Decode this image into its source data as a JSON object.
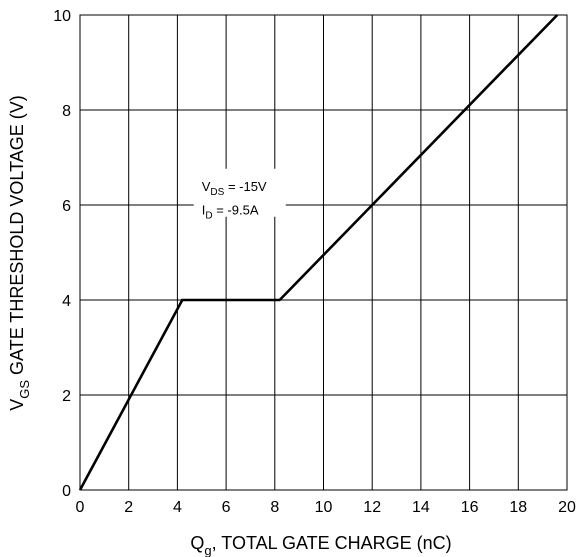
{
  "chart_data": {
    "type": "line",
    "colors": {
      "line": "#000000",
      "grid": "#000000",
      "background": "#ffffff"
    },
    "grid": true,
    "xlim": [
      0,
      20
    ],
    "ylim": [
      0,
      10
    ],
    "x_ticks": [
      0,
      2,
      4,
      6,
      8,
      10,
      12,
      14,
      16,
      18,
      20
    ],
    "y_ticks": [
      0,
      2,
      4,
      6,
      8,
      10
    ],
    "x_tick_labels": [
      "0",
      "2",
      "4",
      "6",
      "8",
      "10",
      "12",
      "14",
      "16",
      "18",
      "20"
    ],
    "y_tick_labels": [
      "0",
      "2",
      "4",
      "6",
      "8",
      "10"
    ],
    "xlabel": {
      "main": "Q",
      "sub": "g",
      "rest": ", TOTAL GATE CHARGE (nC)"
    },
    "ylabel": {
      "main": "V",
      "sub": "GS",
      "rest": " GATE THRESHOLD VOLTAGE  (V)"
    },
    "series": [
      {
        "x": [
          0,
          4.2,
          8.2,
          19.6
        ],
        "y": [
          0,
          4,
          4,
          10
        ]
      }
    ],
    "annotations": [
      {
        "main": "V",
        "sub": "DS",
        "rest": " = -15V",
        "x": 5.0,
        "y": 6.3
      },
      {
        "main": "I",
        "sub": "D",
        "rest": " = -9.5A",
        "x": 5.0,
        "y": 5.8
      }
    ]
  }
}
